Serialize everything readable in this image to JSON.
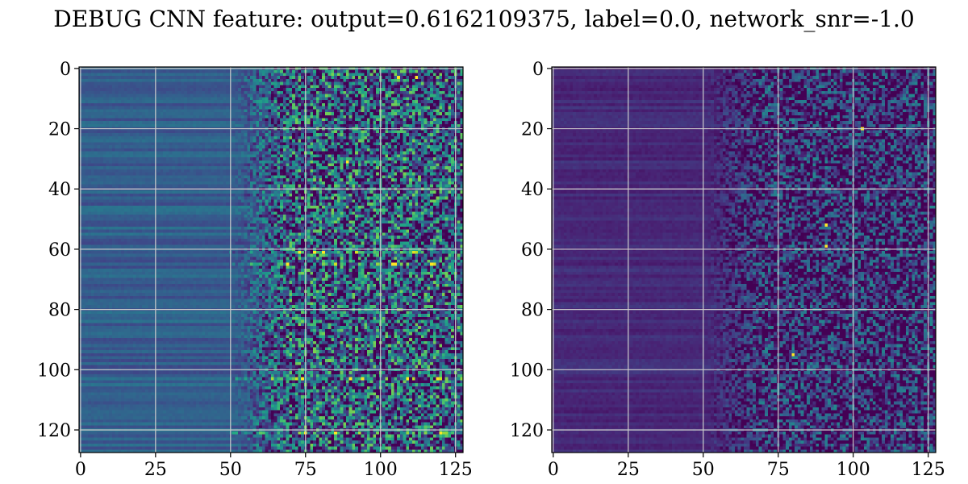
{
  "title": "DEBUG CNN feature: output=0.6162109375, label=0.0, network_snr=-1.0",
  "chart_data": [
    {
      "type": "heatmap",
      "colormap": "viridis",
      "grid": true,
      "grid_color": "#cccccc",
      "rows": 128,
      "cols": 128,
      "xlim": [
        -0.5,
        127.5
      ],
      "ylim": [
        127.5,
        -0.5
      ],
      "x_ticks": [
        0,
        25,
        50,
        75,
        100,
        125
      ],
      "y_ticks": [
        0,
        20,
        40,
        60,
        80,
        100,
        120
      ],
      "x_tick_labels": [
        "0",
        "25",
        "50",
        "75",
        "100",
        "125"
      ],
      "y_tick_labels": [
        "0",
        "20",
        "40",
        "60",
        "80",
        "100",
        "120"
      ],
      "value_range": [
        0,
        1
      ],
      "smooth_region_cols": [
        0,
        70
      ],
      "noisy_region_cols": [
        50,
        127
      ],
      "smooth_mean": 0.3,
      "noisy_mean": 0.3,
      "noise_amplitude": 0.5,
      "row_stripe_amplitude": 0.08,
      "hot_rows": [
        61,
        65,
        103,
        121
      ],
      "hot_spots": [
        [
          3,
          106
        ],
        [
          3,
          112
        ],
        [
          31,
          89
        ],
        [
          61,
          81
        ],
        [
          65,
          105
        ],
        [
          65,
          117
        ],
        [
          103,
          90
        ],
        [
          121,
          120
        ]
      ]
    },
    {
      "type": "heatmap",
      "colormap": "viridis",
      "grid": true,
      "grid_color": "#cccccc",
      "rows": 128,
      "cols": 128,
      "xlim": [
        -0.5,
        127.5
      ],
      "ylim": [
        127.5,
        -0.5
      ],
      "x_ticks": [
        0,
        25,
        50,
        75,
        100,
        125
      ],
      "y_ticks": [
        0,
        20,
        40,
        60,
        80,
        100,
        120
      ],
      "x_tick_labels": [
        "0",
        "25",
        "50",
        "75",
        "100",
        "125"
      ],
      "y_tick_labels": [
        "0",
        "20",
        "40",
        "60",
        "80",
        "100",
        "120"
      ],
      "value_range": [
        0,
        1
      ],
      "smooth_region_cols": [
        0,
        70
      ],
      "noisy_region_cols": [
        50,
        127
      ],
      "smooth_mean": 0.12,
      "noisy_mean": 0.12,
      "noise_amplitude": 0.35,
      "row_stripe_amplitude": 0.04,
      "hot_rows": [],
      "hot_spots": [
        [
          52,
          91
        ],
        [
          59,
          91
        ],
        [
          95,
          80
        ],
        [
          20,
          103
        ]
      ]
    }
  ]
}
